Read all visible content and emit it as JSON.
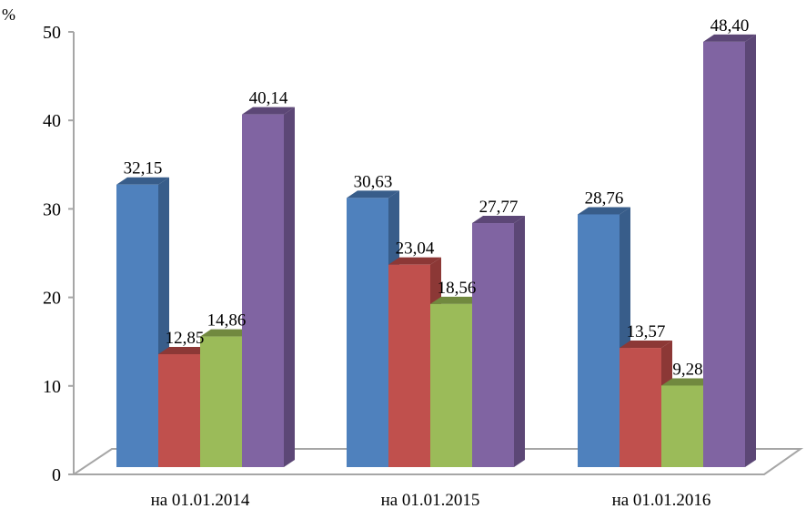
{
  "chart_data": {
    "type": "bar",
    "style": "3d-clustered-column",
    "ylabel": "%",
    "ylim": [
      0,
      50
    ],
    "yticks": [
      "0",
      "10",
      "20",
      "30",
      "40",
      "50"
    ],
    "grid": false,
    "legend": "none",
    "categories": [
      "на 01.01.2014",
      "на 01.01.2015",
      "на 01.01.2016"
    ],
    "series": [
      {
        "values": [
          32.15,
          30.63,
          28.76
        ],
        "labels": [
          "32,15",
          "30,63",
          "28,76"
        ],
        "color": "#4f81bd",
        "side": "#385d8a"
      },
      {
        "values": [
          12.85,
          23.04,
          13.57
        ],
        "labels": [
          "12,85",
          "23,04",
          "13,57"
        ],
        "color": "#c0504d",
        "side": "#8c3836"
      },
      {
        "values": [
          14.86,
          18.56,
          9.28
        ],
        "labels": [
          "14,86",
          "18,56",
          "9,28"
        ],
        "color": "#9bbb59",
        "side": "#71893f"
      },
      {
        "values": [
          40.14,
          27.77,
          48.4
        ],
        "labels": [
          "40,14",
          "27,77",
          "48,40"
        ],
        "color": "#8064a2",
        "side": "#5c4776"
      }
    ]
  }
}
